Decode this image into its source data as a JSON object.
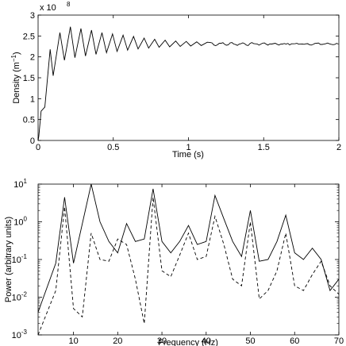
{
  "chart_data": [
    {
      "type": "line",
      "xlabel": "Time (s)",
      "ylabel": "Density (m",
      "ylabel_sup": "−1",
      "ylabel_end": ")",
      "scale_label": "x 10",
      "scale_exp": "8",
      "xlim": [
        0,
        2
      ],
      "ylim": [
        0,
        3
      ],
      "xticks": [
        0,
        0.5,
        1,
        1.5,
        2
      ],
      "xtick_labels": [
        "0",
        "0.5",
        "1",
        "1.5",
        "2"
      ],
      "yticks": [
        0,
        0.5,
        1,
        1.5,
        2,
        2.5,
        3
      ],
      "ytick_labels": [
        "0",
        "0.5",
        "1",
        "1.5",
        "2",
        "2.5",
        "3"
      ],
      "grid": false,
      "series": [
        {
          "color": "#000000",
          "style": "solid",
          "peaks": [
            [
              0.08,
              2.18
            ],
            [
              0.145,
              2.58
            ],
            [
              0.215,
              2.72
            ],
            [
              0.285,
              2.68
            ],
            [
              0.355,
              2.64
            ],
            [
              0.425,
              2.58
            ],
            [
              0.495,
              2.55
            ],
            [
              0.565,
              2.52
            ],
            [
              0.635,
              2.49
            ],
            [
              0.705,
              2.45
            ],
            [
              0.775,
              2.42
            ],
            [
              0.845,
              2.4
            ],
            [
              0.915,
              2.38
            ],
            [
              0.985,
              2.37
            ],
            [
              1.055,
              2.36
            ],
            [
              1.125,
              2.35
            ]
          ],
          "troughs": [
            [
              0.005,
              0.1
            ],
            [
              0.02,
              0.7
            ],
            [
              0.045,
              0.8
            ],
            [
              0.1,
              1.55
            ],
            [
              0.175,
              1.92
            ],
            [
              0.245,
              1.98
            ],
            [
              0.315,
              2.02
            ],
            [
              0.385,
              2.06
            ],
            [
              0.455,
              2.1
            ],
            [
              0.525,
              2.13
            ],
            [
              0.595,
              2.16
            ],
            [
              0.665,
              2.19
            ],
            [
              0.735,
              2.21
            ],
            [
              0.805,
              2.23
            ],
            [
              0.875,
              2.24
            ],
            [
              0.945,
              2.25
            ],
            [
              1.015,
              2.26
            ],
            [
              1.085,
              2.27
            ]
          ],
          "steady_value": 2.31
        }
      ]
    },
    {
      "type": "line",
      "xlabel": "Frequency (Hz)",
      "ylabel": "Power (arbitrary units)",
      "xlim": [
        2,
        70
      ],
      "ylim_log10": [
        -3,
        1
      ],
      "yscale": "log",
      "xticks": [
        10,
        20,
        30,
        40,
        50,
        60,
        70
      ],
      "xtick_labels": [
        "10",
        "20",
        "30",
        "40",
        "50",
        "60",
        "70"
      ],
      "yticks_exp": [
        -3,
        -2,
        -1,
        0,
        1
      ],
      "ytick_base": "10",
      "ytick_exps": [
        "-3",
        "-2",
        "-1",
        "0",
        "1"
      ],
      "grid": false,
      "series": [
        {
          "color": "#000000",
          "style": "solid",
          "x": [
            2,
            6,
            8,
            10,
            14,
            16,
            18,
            20,
            22,
            24,
            26,
            28,
            30,
            32,
            34,
            36,
            38,
            40,
            42,
            44,
            46,
            48,
            50,
            52,
            54,
            56,
            58,
            60,
            62,
            64,
            66,
            68,
            70
          ],
          "y": [
            0.004,
            0.08,
            4.5,
            0.08,
            10,
            1,
            0.3,
            0.15,
            0.9,
            0.3,
            0.35,
            7.5,
            0.3,
            0.15,
            0.3,
            0.8,
            0.25,
            0.3,
            5,
            1.2,
            0.3,
            0.12,
            2,
            0.09,
            0.1,
            0.3,
            1.5,
            0.15,
            0.1,
            0.2,
            0.1,
            0.015,
            0.03
          ]
        },
        {
          "color": "#000000",
          "style": "dashed",
          "x": [
            2,
            6,
            8,
            10,
            12,
            14,
            16,
            18,
            20,
            22,
            24,
            26,
            28,
            30,
            32,
            34,
            36,
            38,
            40,
            42,
            44,
            46,
            48,
            50,
            52,
            54,
            56,
            58,
            60,
            62,
            64,
            66,
            68,
            70
          ],
          "y": [
            0.001,
            0.015,
            2.5,
            0.005,
            0.003,
            0.5,
            0.1,
            0.09,
            0.35,
            0.25,
            0.03,
            0.002,
            4.5,
            0.05,
            0.035,
            0.13,
            0.5,
            0.1,
            0.12,
            1.4,
            0.25,
            0.03,
            0.02,
            1,
            0.009,
            0.015,
            0.05,
            0.5,
            0.02,
            0.015,
            0.04,
            0.09,
            0.02,
            0.012
          ]
        }
      ]
    }
  ]
}
